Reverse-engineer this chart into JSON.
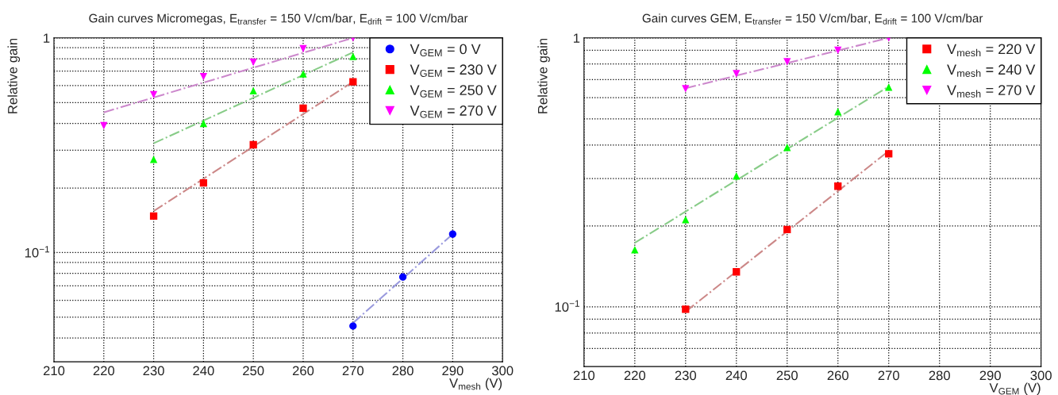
{
  "chart_data": [
    {
      "type": "scatter",
      "title": "Gain curves Micromegas, E$_{transfer}$ = 150 V/cm/bar, E$_{drift}$ = 100 V/cm/bar",
      "xlabel": "V$_{mesh}$ (V)",
      "ylabel": "Relative gain",
      "log": "y",
      "grid": true,
      "legend": "top right",
      "xlim": [
        210,
        300
      ],
      "xticks": [
        210,
        220,
        230,
        240,
        250,
        260,
        270,
        280,
        290,
        300
      ],
      "ylim": [
        0.031,
        1.0
      ],
      "yticks": [
        {
          "value": 0.04,
          "label": null
        },
        {
          "value": 0.05,
          "label": null
        },
        {
          "value": 0.06,
          "label": null
        },
        {
          "value": 0.07,
          "label": null
        },
        {
          "value": 0.08,
          "label": null
        },
        {
          "value": 0.09,
          "label": null
        },
        {
          "value": 0.1,
          "label": "10$^{−1}$"
        },
        {
          "value": 0.2,
          "label": null
        },
        {
          "value": 0.3,
          "label": null
        },
        {
          "value": 0.4,
          "label": null
        },
        {
          "value": 0.5,
          "label": null
        },
        {
          "value": 0.6,
          "label": null
        },
        {
          "value": 0.7,
          "label": null
        },
        {
          "value": 0.8,
          "label": null
        },
        {
          "value": 0.9,
          "label": null
        },
        1
      ],
      "series": [
        {
          "name": "V$_{GEM}$ = 0 V",
          "marker": "circle",
          "color": "#0000ff",
          "x": [
            270,
            280,
            290
          ],
          "values": [
            0.0455,
            0.077,
            0.122
          ]
        },
        {
          "name": "V$_{GEM}$ = 230 V",
          "marker": "square",
          "color": "#ff0000",
          "x": [
            230,
            240,
            250,
            260,
            270
          ],
          "values": [
            0.148,
            0.211,
            0.318,
            0.471,
            0.625
          ]
        },
        {
          "name": "V$_{GEM}$ = 250 V",
          "marker": "triangle",
          "color": "#00ff00",
          "x": [
            230,
            240,
            250,
            260,
            270
          ],
          "values": [
            0.272,
            0.4,
            0.568,
            0.68,
            0.82
          ]
        },
        {
          "name": "V$_{GEM}$ = 270 V",
          "marker": "triangle_down",
          "color": "#ff00ff",
          "x": [
            220,
            230,
            240,
            250,
            260,
            270
          ],
          "values": [
            0.39,
            0.544,
            0.66,
            0.77,
            0.89,
            1.0
          ]
        },
        {
          "type": "line",
          "line_style": "dashdot",
          "color": "#9999dd",
          "x": [
            270,
            290
          ],
          "values": [
            0.047,
            0.122
          ]
        },
        {
          "type": "line",
          "line_style": "dashdot",
          "color": "#cc8888",
          "x": [
            230,
            270
          ],
          "values": [
            0.156,
            0.625
          ]
        },
        {
          "type": "line",
          "line_style": "dashdot",
          "color": "#88cc88",
          "x": [
            230,
            270
          ],
          "values": [
            0.323,
            0.857
          ]
        },
        {
          "type": "line",
          "line_style": "dashdot",
          "color": "#cc88cc",
          "x": [
            220,
            270
          ],
          "values": [
            0.45,
            1.0
          ]
        }
      ]
    },
    {
      "type": "scatter",
      "title": "Gain curves GEM, E$_{transfer}$ = 150 V/cm/bar, E$_{drift}$ = 100 V/cm/bar",
      "xlabel": "V$_{GEM}$ (V)",
      "ylabel": "Relative gain",
      "log": "y",
      "grid": true,
      "legend": "top right",
      "xlim": [
        210,
        300
      ],
      "xticks": [
        210,
        220,
        230,
        240,
        250,
        260,
        270,
        280,
        290,
        300
      ],
      "ylim": [
        0.06,
        1.0
      ],
      "yticks": [
        {
          "value": 0.07,
          "label": null
        },
        {
          "value": 0.08,
          "label": null
        },
        {
          "value": 0.09,
          "label": null
        },
        {
          "value": 0.1,
          "label": "10$^{−1}$"
        },
        {
          "value": 0.2,
          "label": null
        },
        {
          "value": 0.3,
          "label": null
        },
        {
          "value": 0.4,
          "label": null
        },
        {
          "value": 0.5,
          "label": null
        },
        {
          "value": 0.6,
          "label": null
        },
        {
          "value": 0.7,
          "label": null
        },
        {
          "value": 0.8,
          "label": null
        },
        {
          "value": 0.9,
          "label": null
        },
        1
      ],
      "series": [
        {
          "name": "V$_{mesh}$ = 220 V",
          "marker": "square",
          "color": "#ff0000",
          "x": [
            230,
            240,
            250,
            260,
            270
          ],
          "values": [
            0.098,
            0.135,
            0.194,
            0.281,
            0.371
          ]
        },
        {
          "name": "V$_{mesh}$ = 240 V",
          "marker": "triangle",
          "color": "#00ff00",
          "x": [
            220,
            230,
            240,
            250,
            260,
            270
          ],
          "values": [
            0.163,
            0.211,
            0.307,
            0.392,
            0.532,
            0.656
          ]
        },
        {
          "name": "V$_{mesh}$ = 270 V",
          "marker": "triangle_down",
          "color": "#ff00ff",
          "x": [
            230,
            240,
            250,
            260,
            270
          ],
          "values": [
            0.647,
            0.736,
            0.815,
            0.9,
            1.0
          ]
        },
        {
          "type": "line",
          "line_style": "dashdot",
          "color": "#cc8888",
          "x": [
            230,
            270
          ],
          "values": [
            0.096,
            0.38
          ]
        },
        {
          "type": "line",
          "line_style": "dashdot",
          "color": "#88cc88",
          "x": [
            220,
            270
          ],
          "values": [
            0.173,
            0.66
          ]
        },
        {
          "type": "line",
          "line_style": "dashdot",
          "color": "#cc88cc",
          "x": [
            230,
            270
          ],
          "values": [
            0.65,
            1.0
          ]
        }
      ]
    }
  ]
}
